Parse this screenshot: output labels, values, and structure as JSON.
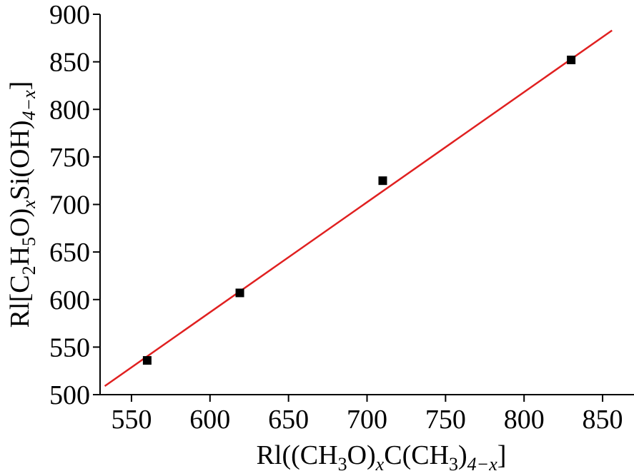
{
  "chart_data": {
    "type": "scatter",
    "xlabel": {
      "parts": [
        {
          "t": "Rl((CH",
          "s": "n"
        },
        {
          "t": "3",
          "s": "sub"
        },
        {
          "t": "O)",
          "s": "n"
        },
        {
          "t": "x",
          "s": "sub-italic"
        },
        {
          "t": "C(CH",
          "s": "n"
        },
        {
          "t": "3",
          "s": "sub"
        },
        {
          "t": ")",
          "s": "n"
        },
        {
          "t": "4−x",
          "s": "sub-italic"
        },
        {
          "t": "]",
          "s": "n"
        }
      ]
    },
    "ylabel": {
      "parts": [
        {
          "t": "Rl[C",
          "s": "n"
        },
        {
          "t": "2",
          "s": "sub"
        },
        {
          "t": "H",
          "s": "n"
        },
        {
          "t": "5",
          "s": "sub"
        },
        {
          "t": "O)",
          "s": "n"
        },
        {
          "t": "x",
          "s": "sub-italic"
        },
        {
          "t": "Si(OH)",
          "s": "n"
        },
        {
          "t": "4−x",
          "s": "sub-italic"
        },
        {
          "t": "]",
          "s": "n"
        }
      ]
    },
    "xlim": [
      530,
      870
    ],
    "ylim": [
      500,
      900
    ],
    "xticks": [
      550,
      600,
      650,
      700,
      750,
      800,
      850
    ],
    "yticks": [
      500,
      550,
      600,
      650,
      700,
      750,
      800,
      850,
      900
    ],
    "grid": false,
    "points": [
      {
        "x": 560,
        "y": 536
      },
      {
        "x": 619,
        "y": 607
      },
      {
        "x": 710,
        "y": 725
      },
      {
        "x": 830,
        "y": 852
      }
    ],
    "fit_line": {
      "x": [
        533,
        856
      ],
      "y": [
        509,
        883
      ],
      "color": "#e02020"
    },
    "marker_color": "#000000"
  }
}
